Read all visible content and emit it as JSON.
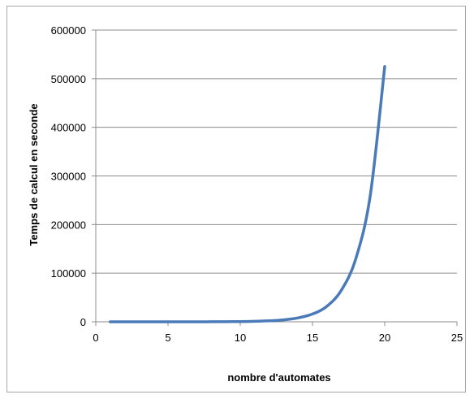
{
  "chart_data": {
    "type": "line",
    "title": "",
    "xlabel": "nombre d'automates",
    "ylabel": "Temps de calcul  en seconde",
    "xlim": [
      0,
      25
    ],
    "ylim": [
      0,
      600000
    ],
    "x_ticks": [
      0,
      5,
      10,
      15,
      20,
      25
    ],
    "y_ticks": [
      0,
      100000,
      200000,
      300000,
      400000,
      500000,
      600000
    ],
    "grid": "horizontal",
    "legend": "none",
    "series": [
      {
        "color": "#4a7ab8",
        "x": [
          1,
          2,
          3,
          4,
          5,
          6,
          7,
          8,
          9,
          10,
          11,
          12,
          13,
          14,
          15,
          16,
          17,
          18,
          19,
          20
        ],
        "y": [
          1,
          2,
          4,
          8,
          15,
          30,
          60,
          120,
          250,
          500,
          1000,
          2000,
          4000,
          8000,
          16000,
          32000,
          65000,
          130000,
          260000,
          525000
        ]
      }
    ]
  }
}
